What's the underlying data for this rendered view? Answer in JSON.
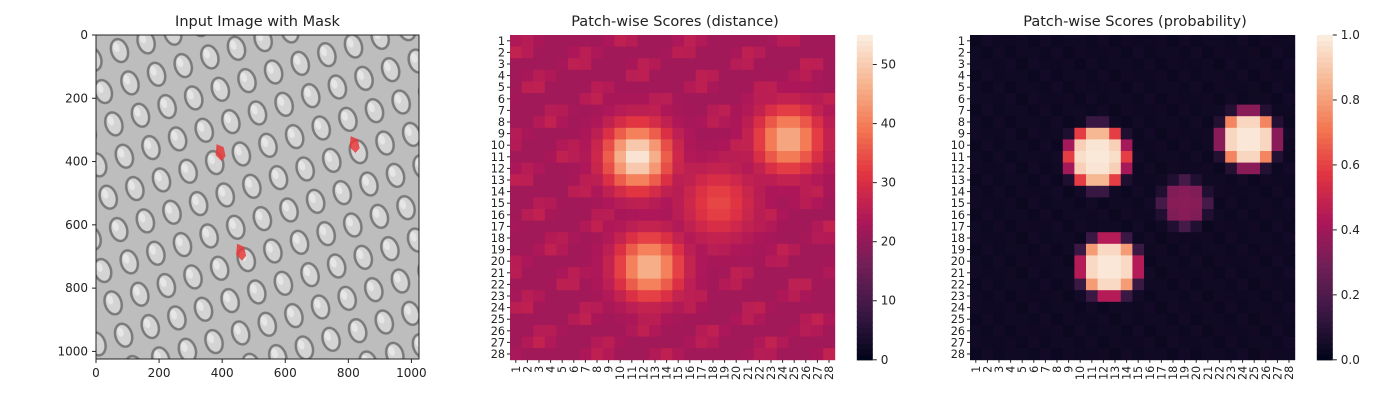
{
  "colors": {
    "mask": "#e8393a",
    "cmap_stops": [
      "#03051a",
      "#3a1844",
      "#701f57",
      "#ad1759",
      "#e13342",
      "#f37651",
      "#f6b48f",
      "#faebdd"
    ]
  },
  "chart_data": [
    {
      "type": "image",
      "title": "Input Image with Mask",
      "x_ticks": [
        "0",
        "200",
        "400",
        "600",
        "800",
        "1000"
      ],
      "y_ticks": [
        "0",
        "200",
        "400",
        "600",
        "800",
        "1000"
      ],
      "xlim": [
        0,
        1024
      ],
      "ylim": [
        1024,
        0
      ],
      "mask_regions": [
        {
          "x": 395,
          "y": 370
        },
        {
          "x": 820,
          "y": 345
        },
        {
          "x": 460,
          "y": 685
        }
      ]
    },
    {
      "type": "heatmap",
      "title": "Patch-wise Scores (distance)",
      "rows": [
        "1",
        "2",
        "3",
        "4",
        "5",
        "6",
        "7",
        "8",
        "9",
        "10",
        "11",
        "12",
        "13",
        "14",
        "15",
        "16",
        "17",
        "18",
        "19",
        "20",
        "21",
        "22",
        "23",
        "24",
        "25",
        "26",
        "27",
        "28"
      ],
      "cols": [
        "1",
        "2",
        "3",
        "4",
        "5",
        "6",
        "7",
        "8",
        "9",
        "10",
        "11",
        "12",
        "13",
        "14",
        "15",
        "16",
        "17",
        "18",
        "19",
        "20",
        "21",
        "22",
        "23",
        "24",
        "25",
        "26",
        "27",
        "28"
      ],
      "vmin": 0,
      "vmax": 55,
      "colorbar_ticks": [
        "0",
        "10",
        "20",
        "30",
        "40",
        "50"
      ],
      "baseline": 22,
      "hotspots": [
        {
          "row": 11,
          "col": 11.5,
          "peak": 55,
          "radius": 2.6
        },
        {
          "row": 20.5,
          "col": 12.5,
          "peak": 48,
          "radius": 2.6
        },
        {
          "row": 9.5,
          "col": 24.5,
          "peak": 47,
          "radius": 2.6
        },
        {
          "row": 15,
          "col": 18.5,
          "peak": 34,
          "radius": 3.0
        }
      ]
    },
    {
      "type": "heatmap",
      "title": "Patch-wise Scores (probability)",
      "rows": [
        "1",
        "2",
        "3",
        "4",
        "5",
        "6",
        "7",
        "8",
        "9",
        "10",
        "11",
        "12",
        "13",
        "14",
        "15",
        "16",
        "17",
        "18",
        "19",
        "20",
        "21",
        "22",
        "23",
        "24",
        "25",
        "26",
        "27",
        "28"
      ],
      "cols": [
        "1",
        "2",
        "3",
        "4",
        "5",
        "6",
        "7",
        "8",
        "9",
        "10",
        "11",
        "12",
        "13",
        "14",
        "15",
        "16",
        "17",
        "18",
        "19",
        "20",
        "21",
        "22",
        "23",
        "24",
        "25",
        "26",
        "27",
        "28"
      ],
      "vmin": 0,
      "vmax": 1.0,
      "colorbar_ticks": [
        "0.0",
        "0.2",
        "0.4",
        "0.6",
        "0.8",
        "1.0"
      ],
      "hotspots": [
        {
          "row": 11,
          "col": 11.5,
          "peak": 1.0,
          "radius": 2.6
        },
        {
          "row": 20.5,
          "col": 12.5,
          "peak": 1.0,
          "radius": 2.5
        },
        {
          "row": 9.5,
          "col": 24.5,
          "peak": 1.0,
          "radius": 2.4
        },
        {
          "row": 15,
          "col": 19,
          "peak": 0.35,
          "radius": 2.0
        }
      ]
    }
  ]
}
